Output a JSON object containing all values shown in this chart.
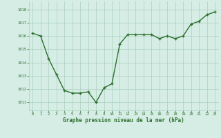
{
  "x": [
    0,
    1,
    2,
    3,
    4,
    5,
    6,
    7,
    8,
    9,
    10,
    11,
    12,
    13,
    14,
    15,
    16,
    17,
    18,
    19,
    20,
    21,
    22,
    23
  ],
  "y": [
    1016.2,
    1016.0,
    1014.3,
    1013.1,
    1011.9,
    1011.7,
    1011.7,
    1011.8,
    1011.0,
    1012.1,
    1012.4,
    1015.4,
    1016.1,
    1016.1,
    1016.1,
    1016.1,
    1015.8,
    1016.0,
    1015.8,
    1016.0,
    1016.9,
    1017.1,
    1017.6,
    1017.8
  ],
  "line_color": "#2d6e2d",
  "marker_color": "#2d6e2d",
  "bg_color": "#d5ede5",
  "grid_color": "#aacfbf",
  "xlabel": "Graphe pression niveau de la mer (hPa)",
  "xlabel_color": "#2d6e2d",
  "tick_color": "#2d6e2d",
  "ylim": [
    1010.4,
    1018.6
  ],
  "yticks": [
    1011,
    1012,
    1013,
    1014,
    1015,
    1016,
    1017,
    1018
  ],
  "xticks": [
    0,
    1,
    2,
    3,
    4,
    5,
    6,
    7,
    8,
    9,
    10,
    11,
    12,
    13,
    14,
    15,
    16,
    17,
    18,
    19,
    20,
    21,
    22,
    23
  ],
  "marker_size": 2.5,
  "line_width": 1.0
}
